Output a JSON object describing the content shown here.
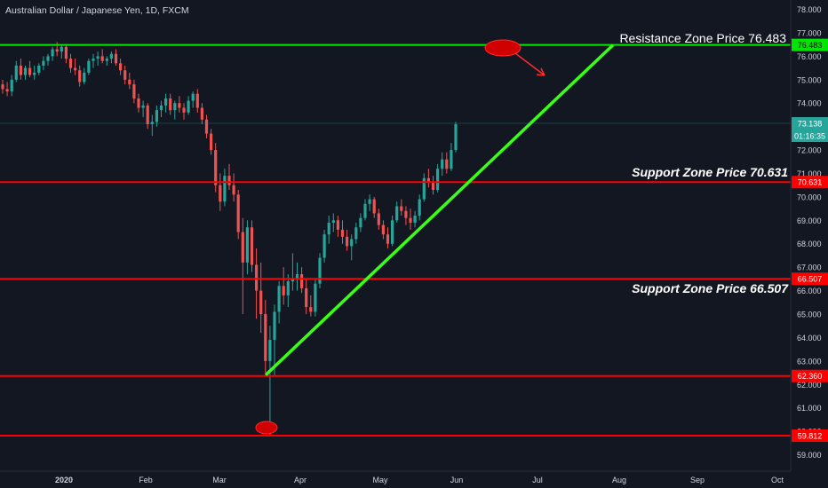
{
  "chart_data": {
    "type": "candlestick",
    "title": "Australian Dollar / Japanese Yen, 1D, FXCM",
    "x_ticks": [
      "2020",
      "Feb",
      "Mar",
      "Apr",
      "May",
      "Jun",
      "Jul",
      "Aug",
      "Sep",
      "Oct"
    ],
    "y_ticks": [
      "78.000",
      "77.000",
      "76.000",
      "75.000",
      "74.000",
      "73.000",
      "72.000",
      "71.000",
      "70.000",
      "69.000",
      "68.000",
      "67.000",
      "66.000",
      "65.000",
      "64.000",
      "63.000",
      "62.000",
      "61.000",
      "60.000",
      "59.000"
    ],
    "ylim": [
      58.3,
      78.4
    ],
    "last_price": "73.138",
    "countdown": "01:16:35",
    "horizontal_levels": [
      {
        "value": 76.483,
        "label": "76.483",
        "color": "#00e600",
        "annotation": "Resistance Zone Price 76.483"
      },
      {
        "value": 70.631,
        "label": "70.631",
        "color": "#ff0000",
        "annotation": "Support Zone Price 70.631"
      },
      {
        "value": 66.507,
        "label": "66.507",
        "color": "#ff0000",
        "annotation": "Support Zone Price 66.507"
      },
      {
        "value": 62.36,
        "label": "62.360",
        "color": "#ff0000",
        "annotation": ""
      },
      {
        "value": 59.812,
        "label": "59.812",
        "color": "#ff0000",
        "annotation": ""
      }
    ],
    "trendline": {
      "from": {
        "date": "2020-03-19",
        "price": 62.4
      },
      "to": {
        "date": "2020-07-29",
        "price": 76.48
      },
      "color": "#39ff14"
    },
    "colors": {
      "up": "#26a69a",
      "down": "#ef5350",
      "background": "#131722",
      "text": "#d1d4dc"
    },
    "candles": [
      {
        "o": 74.8,
        "h": 75.0,
        "l": 74.4,
        "c": 74.6
      },
      {
        "o": 74.6,
        "h": 74.9,
        "l": 74.3,
        "c": 74.5
      },
      {
        "o": 74.5,
        "h": 75.2,
        "l": 74.3,
        "c": 75.0
      },
      {
        "o": 75.0,
        "h": 75.8,
        "l": 74.9,
        "c": 75.6
      },
      {
        "o": 75.6,
        "h": 75.9,
        "l": 75.0,
        "c": 75.2
      },
      {
        "o": 75.2,
        "h": 75.6,
        "l": 75.0,
        "c": 75.5
      },
      {
        "o": 75.5,
        "h": 75.8,
        "l": 75.1,
        "c": 75.2
      },
      {
        "o": 75.2,
        "h": 75.6,
        "l": 75.0,
        "c": 75.3
      },
      {
        "o": 75.3,
        "h": 75.7,
        "l": 75.2,
        "c": 75.6
      },
      {
        "o": 75.6,
        "h": 76.0,
        "l": 75.4,
        "c": 75.8
      },
      {
        "o": 75.8,
        "h": 76.1,
        "l": 75.6,
        "c": 76.0
      },
      {
        "o": 76.0,
        "h": 76.4,
        "l": 75.8,
        "c": 76.3
      },
      {
        "o": 76.3,
        "h": 76.6,
        "l": 76.0,
        "c": 76.2
      },
      {
        "o": 76.2,
        "h": 76.5,
        "l": 75.9,
        "c": 76.4
      },
      {
        "o": 76.4,
        "h": 76.5,
        "l": 75.7,
        "c": 75.9
      },
      {
        "o": 75.9,
        "h": 76.1,
        "l": 75.3,
        "c": 75.5
      },
      {
        "o": 75.5,
        "h": 75.9,
        "l": 75.2,
        "c": 75.4
      },
      {
        "o": 75.4,
        "h": 75.6,
        "l": 74.7,
        "c": 74.9
      },
      {
        "o": 74.9,
        "h": 75.5,
        "l": 74.8,
        "c": 75.3
      },
      {
        "o": 75.3,
        "h": 75.9,
        "l": 75.2,
        "c": 75.8
      },
      {
        "o": 75.8,
        "h": 76.1,
        "l": 75.5,
        "c": 75.9
      },
      {
        "o": 75.9,
        "h": 76.2,
        "l": 75.6,
        "c": 76.0
      },
      {
        "o": 76.0,
        "h": 76.3,
        "l": 75.7,
        "c": 75.8
      },
      {
        "o": 75.8,
        "h": 76.0,
        "l": 75.6,
        "c": 75.9
      },
      {
        "o": 75.9,
        "h": 76.2,
        "l": 75.7,
        "c": 76.1
      },
      {
        "o": 76.1,
        "h": 76.3,
        "l": 75.6,
        "c": 75.7
      },
      {
        "o": 75.7,
        "h": 75.9,
        "l": 75.2,
        "c": 75.4
      },
      {
        "o": 75.4,
        "h": 75.6,
        "l": 74.8,
        "c": 75.0
      },
      {
        "o": 75.0,
        "h": 75.3,
        "l": 74.6,
        "c": 74.8
      },
      {
        "o": 74.8,
        "h": 75.0,
        "l": 74.0,
        "c": 74.2
      },
      {
        "o": 74.2,
        "h": 74.4,
        "l": 73.6,
        "c": 73.8
      },
      {
        "o": 73.8,
        "h": 74.1,
        "l": 73.4,
        "c": 73.9
      },
      {
        "o": 73.9,
        "h": 74.0,
        "l": 72.9,
        "c": 73.1
      },
      {
        "o": 73.1,
        "h": 73.5,
        "l": 72.6,
        "c": 73.2
      },
      {
        "o": 73.2,
        "h": 73.9,
        "l": 73.0,
        "c": 73.7
      },
      {
        "o": 73.7,
        "h": 74.1,
        "l": 73.4,
        "c": 73.9
      },
      {
        "o": 73.9,
        "h": 74.4,
        "l": 73.6,
        "c": 74.2
      },
      {
        "o": 74.2,
        "h": 74.4,
        "l": 73.5,
        "c": 73.7
      },
      {
        "o": 73.7,
        "h": 74.1,
        "l": 73.3,
        "c": 74.0
      },
      {
        "o": 74.0,
        "h": 74.3,
        "l": 73.6,
        "c": 73.8
      },
      {
        "o": 73.8,
        "h": 74.0,
        "l": 73.3,
        "c": 73.6
      },
      {
        "o": 73.6,
        "h": 74.3,
        "l": 73.5,
        "c": 74.1
      },
      {
        "o": 74.1,
        "h": 74.5,
        "l": 73.8,
        "c": 74.4
      },
      {
        "o": 74.4,
        "h": 74.6,
        "l": 73.6,
        "c": 73.8
      },
      {
        "o": 73.8,
        "h": 74.0,
        "l": 73.1,
        "c": 73.3
      },
      {
        "o": 73.3,
        "h": 73.5,
        "l": 72.5,
        "c": 72.7
      },
      {
        "o": 72.7,
        "h": 72.9,
        "l": 71.8,
        "c": 72.0
      },
      {
        "o": 72.0,
        "h": 72.3,
        "l": 70.2,
        "c": 70.5
      },
      {
        "o": 70.5,
        "h": 71.0,
        "l": 69.4,
        "c": 69.8
      },
      {
        "o": 69.8,
        "h": 71.2,
        "l": 69.6,
        "c": 70.9
      },
      {
        "o": 70.9,
        "h": 71.4,
        "l": 70.3,
        "c": 70.5
      },
      {
        "o": 70.5,
        "h": 71.0,
        "l": 69.8,
        "c": 70.1
      },
      {
        "o": 70.1,
        "h": 70.3,
        "l": 68.2,
        "c": 68.5
      },
      {
        "o": 68.5,
        "h": 69.1,
        "l": 65.0,
        "c": 67.2
      },
      {
        "o": 67.2,
        "h": 69.0,
        "l": 66.7,
        "c": 68.7
      },
      {
        "o": 68.7,
        "h": 69.0,
        "l": 66.8,
        "c": 67.1
      },
      {
        "o": 67.1,
        "h": 67.8,
        "l": 64.8,
        "c": 66.0
      },
      {
        "o": 66.0,
        "h": 67.2,
        "l": 64.2,
        "c": 65.0
      },
      {
        "o": 65.0,
        "h": 65.6,
        "l": 62.5,
        "c": 63.0
      },
      {
        "o": 63.0,
        "h": 64.5,
        "l": 59.8,
        "c": 63.9
      },
      {
        "o": 63.9,
        "h": 65.4,
        "l": 62.4,
        "c": 65.1
      },
      {
        "o": 65.1,
        "h": 66.4,
        "l": 64.6,
        "c": 66.2
      },
      {
        "o": 66.2,
        "h": 67.0,
        "l": 65.4,
        "c": 65.8
      },
      {
        "o": 65.8,
        "h": 66.7,
        "l": 65.3,
        "c": 66.4
      },
      {
        "o": 66.4,
        "h": 67.6,
        "l": 66.0,
        "c": 66.5
      },
      {
        "o": 66.5,
        "h": 67.2,
        "l": 66.0,
        "c": 66.7
      },
      {
        "o": 66.7,
        "h": 67.0,
        "l": 65.9,
        "c": 66.1
      },
      {
        "o": 66.1,
        "h": 66.5,
        "l": 65.0,
        "c": 65.3
      },
      {
        "o": 65.3,
        "h": 65.8,
        "l": 64.9,
        "c": 65.1
      },
      {
        "o": 65.1,
        "h": 66.5,
        "l": 64.9,
        "c": 66.3
      },
      {
        "o": 66.3,
        "h": 67.6,
        "l": 66.1,
        "c": 67.4
      },
      {
        "o": 67.4,
        "h": 68.6,
        "l": 67.2,
        "c": 68.4
      },
      {
        "o": 68.4,
        "h": 69.2,
        "l": 68.0,
        "c": 68.9
      },
      {
        "o": 68.9,
        "h": 69.3,
        "l": 68.5,
        "c": 69.0
      },
      {
        "o": 69.0,
        "h": 69.2,
        "l": 68.3,
        "c": 68.6
      },
      {
        "o": 68.6,
        "h": 69.0,
        "l": 68.0,
        "c": 68.3
      },
      {
        "o": 68.3,
        "h": 68.6,
        "l": 67.7,
        "c": 67.9
      },
      {
        "o": 67.9,
        "h": 68.4,
        "l": 67.3,
        "c": 68.2
      },
      {
        "o": 68.2,
        "h": 68.9,
        "l": 68.0,
        "c": 68.7
      },
      {
        "o": 68.7,
        "h": 69.3,
        "l": 68.5,
        "c": 69.1
      },
      {
        "o": 69.1,
        "h": 69.9,
        "l": 69.0,
        "c": 69.7
      },
      {
        "o": 69.7,
        "h": 70.1,
        "l": 69.4,
        "c": 69.9
      },
      {
        "o": 69.9,
        "h": 70.0,
        "l": 69.1,
        "c": 69.3
      },
      {
        "o": 69.3,
        "h": 69.5,
        "l": 68.6,
        "c": 68.8
      },
      {
        "o": 68.8,
        "h": 69.0,
        "l": 68.2,
        "c": 68.4
      },
      {
        "o": 68.4,
        "h": 68.7,
        "l": 67.8,
        "c": 68.0
      },
      {
        "o": 68.0,
        "h": 69.2,
        "l": 67.9,
        "c": 69.0
      },
      {
        "o": 69.0,
        "h": 69.8,
        "l": 68.9,
        "c": 69.6
      },
      {
        "o": 69.6,
        "h": 69.9,
        "l": 69.2,
        "c": 69.4
      },
      {
        "o": 69.4,
        "h": 69.6,
        "l": 68.8,
        "c": 69.1
      },
      {
        "o": 69.1,
        "h": 69.5,
        "l": 68.6,
        "c": 68.9
      },
      {
        "o": 68.9,
        "h": 69.4,
        "l": 68.7,
        "c": 69.2
      },
      {
        "o": 69.2,
        "h": 70.1,
        "l": 69.0,
        "c": 69.9
      },
      {
        "o": 69.9,
        "h": 71.0,
        "l": 69.8,
        "c": 70.8
      },
      {
        "o": 70.8,
        "h": 71.2,
        "l": 70.4,
        "c": 70.6
      },
      {
        "o": 70.6,
        "h": 70.9,
        "l": 70.1,
        "c": 70.3
      },
      {
        "o": 70.3,
        "h": 71.4,
        "l": 70.2,
        "c": 71.2
      },
      {
        "o": 71.2,
        "h": 71.9,
        "l": 70.9,
        "c": 71.6
      },
      {
        "o": 71.6,
        "h": 71.9,
        "l": 71.0,
        "c": 71.2
      },
      {
        "o": 71.2,
        "h": 72.3,
        "l": 71.1,
        "c": 72.0
      },
      {
        "o": 72.0,
        "h": 73.2,
        "l": 71.9,
        "c": 73.1
      }
    ]
  }
}
